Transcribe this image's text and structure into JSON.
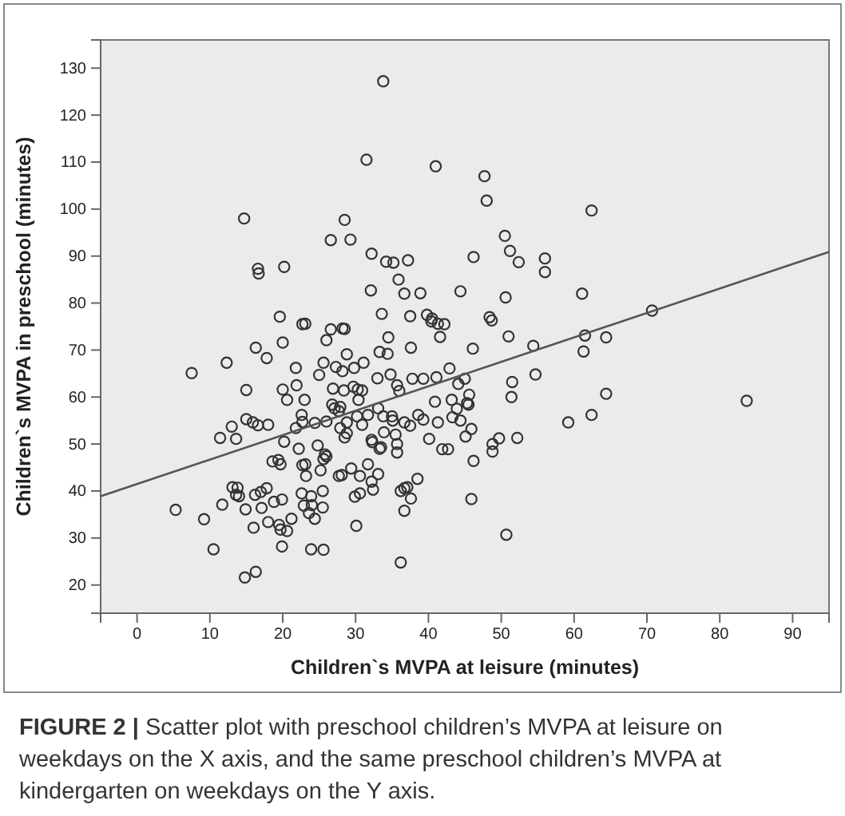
{
  "chart_data": {
    "type": "scatter",
    "xlabel": "Children`s MVPA at leisure (minutes)",
    "ylabel": "Children`s MVPA in preschool (minutes)",
    "annotations": [
      "FIGURE 2 | Scatter plot with preschool children’s MVPA at leisure on weekdays on the X axis, and the same preschool children’s MVPA at kindergarten on weekdays on the Y axis."
    ],
    "xlim": [
      -5,
      95
    ],
    "ylim": [
      14,
      136
    ],
    "xticks": [
      0,
      10,
      20,
      30,
      40,
      50,
      60,
      70,
      80,
      90
    ],
    "yticks": [
      20,
      30,
      40,
      50,
      60,
      70,
      80,
      90,
      100,
      110,
      120,
      130
    ],
    "grid": false,
    "series": [
      {
        "color": "#333333",
        "marker": "circle",
        "x": [
          33.8,
          31.5,
          41.0,
          14.7,
          28.5,
          26.6,
          29.3,
          32.2,
          34.2,
          35.2,
          37.2,
          16.6,
          16.7,
          20.2,
          35.9,
          32.1,
          36.7,
          38.9,
          44.4,
          33.6,
          19.6,
          37.5,
          39.8,
          40.5,
          47.7,
          48.0,
          62.4,
          50.5,
          51.2,
          52.4,
          56.0,
          56.0,
          46.2,
          50.6,
          61.1,
          70.7,
          48.4,
          22.7,
          23.1,
          26.6,
          28.2,
          28.5,
          40.4,
          41.3,
          42.2,
          20.0,
          16.3,
          17.8,
          12.3,
          7.5,
          26.0,
          34.5,
          37.6,
          41.6,
          28.8,
          33.3,
          34.4,
          21.8,
          25.6,
          27.3,
          28.2,
          29.8,
          31.1,
          15.0,
          20.0,
          20.6,
          21.9,
          23.0,
          25.0,
          26.9,
          28.4,
          29.7,
          30.3,
          30.9,
          30.4,
          33.0,
          34.8,
          35.7,
          36.0,
          37.8,
          39.3,
          41.1,
          42.9,
          44.1,
          40.9,
          43.2,
          15.0,
          15.9,
          16.6,
          18.0,
          13.0,
          11.4,
          13.6,
          20.2,
          21.8,
          22.6,
          22.7,
          24.4,
          26.8,
          27.1,
          27.9,
          27.7,
          26.0,
          28.8,
          27.9,
          28.5,
          28.8,
          30.2,
          31.7,
          30.9,
          33.1,
          33.8,
          35.0,
          35.1,
          33.9,
          36.7,
          37.5,
          38.6,
          39.3,
          41.3,
          43.3,
          44.4,
          32.2,
          32.3,
          33.3,
          33.5,
          35.5,
          35.7,
          35.7,
          40.1,
          41.9,
          42.7,
          24.8,
          25.8,
          26.0,
          25.6,
          22.2,
          18.6,
          19.4,
          19.7,
          22.7,
          23.1,
          23.2,
          25.2,
          27.7,
          28.1,
          29.4,
          30.6,
          31.7,
          33.1,
          32.2,
          32.4,
          13.1,
          13.8,
          14.0,
          13.6,
          16.2,
          17.0,
          17.8,
          18.8,
          19.9,
          22.6,
          23.9,
          25.5,
          29.9,
          30.6,
          36.2,
          36.7,
          37.1,
          37.6,
          38.5,
          36.7,
          22.9,
          24.0,
          25.5,
          23.6,
          24.4,
          14.9,
          17.1,
          18.0,
          11.7,
          9.2,
          5.3,
          16.0,
          19.5,
          19.7,
          20.6,
          21.2,
          30.1,
          10.5,
          19.9,
          23.9,
          25.6,
          36.2,
          14.8,
          16.3,
          48.7,
          51.0,
          46.1,
          54.4,
          61.5,
          61.3,
          64.4,
          45.0,
          51.5,
          51.4,
          54.7,
          45.6,
          45.3,
          45.5,
          43.9,
          45.9,
          45.1,
          48.8,
          49.7,
          48.8,
          52.2,
          46.2,
          59.2,
          62.4,
          64.4,
          83.7,
          45.9,
          50.7
        ],
        "values": [
          127.2,
          110.5,
          109.1,
          98.0,
          97.7,
          93.4,
          93.5,
          90.5,
          88.8,
          88.6,
          89.1,
          87.3,
          86.3,
          87.7,
          85.0,
          82.7,
          82.0,
          82.1,
          82.5,
          77.7,
          77.1,
          77.2,
          77.5,
          76.7,
          107.0,
          101.8,
          99.7,
          94.3,
          91.1,
          88.7,
          89.5,
          86.6,
          89.8,
          81.2,
          82.0,
          78.4,
          77.0,
          75.5,
          75.6,
          74.4,
          74.6,
          74.5,
          76.1,
          75.6,
          75.5,
          71.6,
          70.5,
          68.3,
          67.3,
          65.1,
          72.1,
          72.7,
          70.5,
          72.8,
          69.1,
          69.6,
          69.2,
          66.2,
          67.3,
          66.4,
          65.5,
          66.2,
          67.3,
          61.5,
          61.6,
          59.4,
          62.5,
          59.4,
          64.7,
          61.8,
          61.4,
          62.2,
          61.6,
          61.4,
          59.4,
          64.0,
          64.8,
          62.5,
          61.3,
          63.9,
          63.9,
          64.2,
          66.1,
          62.8,
          59.0,
          59.4,
          55.3,
          54.6,
          54.0,
          54.1,
          53.7,
          51.3,
          51.1,
          50.5,
          53.4,
          56.2,
          54.7,
          54.5,
          58.4,
          57.6,
          57.9,
          57.0,
          54.8,
          54.6,
          53.4,
          51.4,
          52.3,
          55.9,
          56.2,
          54.1,
          57.6,
          55.9,
          55.9,
          55.0,
          52.5,
          54.6,
          53.9,
          56.2,
          55.2,
          54.6,
          55.7,
          55.0,
          50.9,
          50.4,
          49.0,
          49.3,
          52.0,
          50.0,
          48.2,
          51.1,
          48.9,
          48.9,
          49.7,
          47.8,
          47.4,
          46.8,
          49.0,
          46.3,
          46.6,
          45.7,
          45.5,
          45.7,
          43.2,
          44.4,
          43.2,
          43.4,
          44.8,
          43.2,
          45.7,
          43.6,
          42.0,
          40.3,
          40.8,
          40.7,
          38.9,
          39.2,
          39.2,
          39.8,
          40.6,
          37.7,
          38.2,
          39.5,
          38.9,
          40.0,
          38.8,
          39.5,
          40.0,
          40.6,
          40.8,
          38.4,
          42.6,
          35.8,
          36.9,
          37.0,
          36.5,
          35.3,
          34.1,
          36.1,
          36.4,
          33.4,
          37.1,
          34.0,
          36.0,
          32.2,
          32.8,
          31.8,
          31.5,
          34.1,
          32.6,
          27.6,
          28.2,
          27.6,
          27.5,
          24.8,
          21.6,
          22.8,
          76.3,
          72.9,
          70.3,
          70.9,
          73.1,
          69.7,
          72.7,
          63.9,
          63.2,
          60.0,
          64.8,
          60.5,
          58.7,
          58.4,
          57.5,
          53.2,
          51.6,
          50.0,
          51.2,
          48.4,
          51.3,
          46.4,
          54.6,
          56.2,
          60.7,
          59.2,
          38.3,
          30.7
        ]
      },
      {
        "type": "line",
        "color": "#555555",
        "x": [
          -5,
          95
        ],
        "values": [
          38.9,
          90.9
        ]
      }
    ]
  }
}
